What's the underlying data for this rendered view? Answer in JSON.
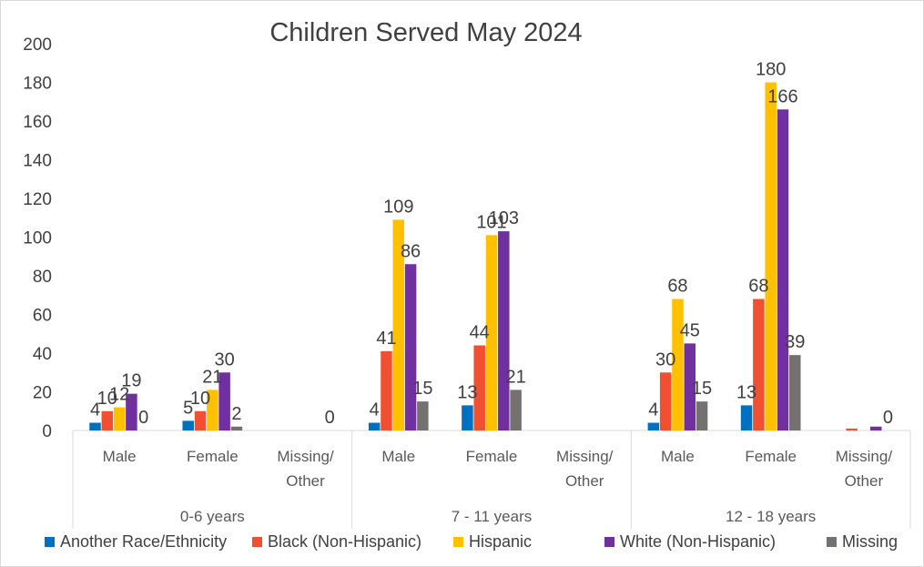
{
  "chart_data": {
    "type": "bar",
    "title": "Children Served May 2024",
    "xlabel": "",
    "ylabel": "",
    "ylim": [
      0,
      200
    ],
    "yticks": [
      0,
      20,
      40,
      60,
      80,
      100,
      120,
      140,
      160,
      180,
      200
    ],
    "grid": false,
    "legend_position": "bottom",
    "groups": [
      {
        "label": "0-6 years",
        "categories": [
          "Male",
          "Female",
          "Missing/\nOther"
        ]
      },
      {
        "label": "7 - 11 years",
        "categories": [
          "Male",
          "Female",
          "Missing/\nOther"
        ]
      },
      {
        "label": "12 - 18 years",
        "categories": [
          "Male",
          "Female",
          "Missing/\nOther"
        ]
      }
    ],
    "categories": [
      "Male",
      "Female",
      "Missing/\nOther",
      "Male",
      "Female",
      "Missing/\nOther",
      "Male",
      "Female",
      "Missing/\nOther"
    ],
    "series": [
      {
        "name": "Another Race/Ethnicity",
        "color": "#0070c0",
        "values": [
          4,
          5,
          null,
          4,
          13,
          null,
          4,
          13,
          null
        ]
      },
      {
        "name": "Black (Non-Hispanic)",
        "color": "#f0502f",
        "values": [
          10,
          10,
          null,
          41,
          44,
          null,
          30,
          68,
          1
        ]
      },
      {
        "name": "Hispanic",
        "color": "#ffc000",
        "values": [
          12,
          21,
          null,
          109,
          101,
          null,
          68,
          180,
          null
        ]
      },
      {
        "name": "White (Non-Hispanic)",
        "color": "#7030a0",
        "values": [
          19,
          30,
          null,
          86,
          103,
          null,
          45,
          166,
          2
        ]
      },
      {
        "name": "Missing",
        "color": "#767171",
        "values": [
          0,
          2,
          0,
          15,
          21,
          null,
          15,
          39,
          0
        ]
      }
    ],
    "data_labels": [
      [
        "4",
        "5",
        "",
        "4",
        "13",
        "",
        "4",
        "13",
        ""
      ],
      [
        "10",
        "10",
        "",
        "41",
        "44",
        "",
        "30",
        "68",
        ""
      ],
      [
        "12",
        "21",
        "",
        "109",
        "101",
        "",
        "68",
        "180",
        ""
      ],
      [
        "19",
        "30",
        "",
        "86",
        "103",
        "",
        "45",
        "166",
        ""
      ],
      [
        "0",
        "2",
        "0",
        "15",
        "21",
        "",
        "15",
        "39",
        "0"
      ]
    ]
  }
}
